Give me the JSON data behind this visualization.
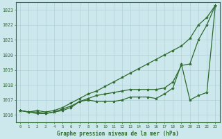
{
  "title": "Graphe pression niveau de la mer (hPa)",
  "background_color": "#cde8ed",
  "grid_color": "#afd0d8",
  "line_color": "#2d6a2d",
  "ylim": [
    1015.5,
    1023.5
  ],
  "yticks": [
    1016,
    1017,
    1018,
    1019,
    1020,
    1021,
    1022,
    1023
  ],
  "xlim": [
    -0.5,
    23.5
  ],
  "series": [
    [
      1016.3,
      1016.2,
      1016.3,
      1016.2,
      1016.3,
      1016.5,
      1016.8,
      1017.1,
      1017.4,
      1017.6,
      1017.9,
      1018.2,
      1018.5,
      1018.8,
      1019.1,
      1019.4,
      1019.7,
      1020.0,
      1020.3,
      1020.6,
      1021.1,
      1022.0,
      1022.5,
      1023.3
    ],
    [
      1016.3,
      1016.2,
      1016.2,
      1016.1,
      1016.2,
      1016.4,
      1016.6,
      1016.9,
      1017.1,
      1017.3,
      1017.4,
      1017.5,
      1017.6,
      1017.7,
      1017.7,
      1017.7,
      1017.7,
      1017.8,
      1018.2,
      1019.3,
      1019.4,
      1021.0,
      1022.0,
      1023.3
    ],
    [
      1016.3,
      1016.2,
      1016.1,
      1016.1,
      1016.2,
      1016.3,
      1016.5,
      1016.9,
      1017.0,
      1016.9,
      1016.9,
      1016.9,
      1017.0,
      1017.2,
      1017.2,
      1017.2,
      1017.1,
      1017.4,
      1017.8,
      1019.4,
      1017.0,
      1017.3,
      1017.5,
      1023.3
    ]
  ]
}
